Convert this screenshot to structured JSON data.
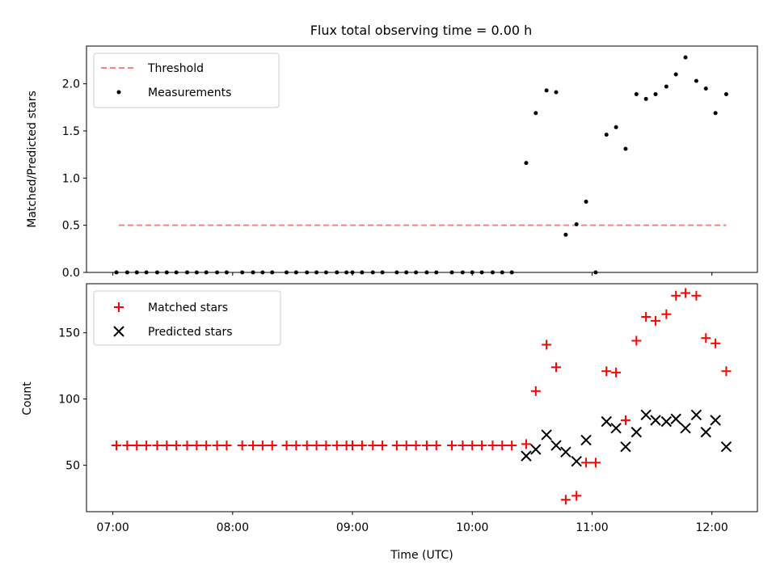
{
  "title": "Flux total observing time = 0.00 h",
  "colors": {
    "threshold": "#ff7f7f",
    "measurement": "#000000",
    "matched": "#ff0000",
    "predicted": "#000000"
  },
  "chart_data": [
    {
      "type": "scatter",
      "ylabel": "Matched/Predicted stars",
      "ylim": [
        0,
        2.4
      ],
      "yticks": [
        "0.0",
        "0.5",
        "1.0",
        "1.5",
        "2.0"
      ],
      "xlim_hours": [
        6.78,
        12.38
      ],
      "legend": {
        "placement": "top-left",
        "entries": [
          "Threshold",
          "Measurements"
        ]
      },
      "threshold": {
        "name": "Threshold",
        "y": 0.5,
        "x": [
          7.05,
          12.12
        ]
      },
      "series": [
        {
          "name": "Measurements",
          "x": [
            7.03,
            7.12,
            7.2,
            7.28,
            7.37,
            7.45,
            7.53,
            7.62,
            7.7,
            7.78,
            7.87,
            7.95,
            8.08,
            8.17,
            8.25,
            8.33,
            8.45,
            8.53,
            8.62,
            8.7,
            8.78,
            8.87,
            8.95,
            9.0,
            9.08,
            9.17,
            9.25,
            9.37,
            9.45,
            9.53,
            9.62,
            9.7,
            9.83,
            9.92,
            10.0,
            10.08,
            10.17,
            10.25,
            10.33,
            10.45,
            10.53,
            10.62,
            10.7,
            10.78,
            10.87,
            10.95,
            11.03,
            11.12,
            11.2,
            11.28,
            11.37,
            11.45,
            11.53,
            11.62,
            11.7,
            11.78,
            11.87,
            11.95,
            12.03,
            12.12
          ],
          "y": [
            0,
            0,
            0,
            0,
            0,
            0,
            0,
            0,
            0,
            0,
            0,
            0,
            0,
            0,
            0,
            0,
            0,
            0,
            0,
            0,
            0,
            0,
            0,
            0,
            0,
            0,
            0,
            0,
            0,
            0,
            0,
            0,
            0,
            0,
            0,
            0,
            0,
            0,
            0,
            1.16,
            1.69,
            1.93,
            1.91,
            0.4,
            0.51,
            0.75,
            0,
            1.46,
            1.54,
            1.31,
            1.89,
            1.84,
            1.89,
            1.97,
            2.1,
            2.28,
            2.03,
            1.95,
            1.69,
            1.89
          ]
        }
      ]
    },
    {
      "type": "scatter",
      "xlabel": "Time (UTC)",
      "ylabel": "Count",
      "ylim": [
        15,
        187
      ],
      "yticks": [
        "50",
        "100",
        "150"
      ],
      "xticks": [
        "07:00",
        "08:00",
        "09:00",
        "10:00",
        "11:00",
        "12:00"
      ],
      "xlim_hours": [
        6.78,
        12.38
      ],
      "legend": {
        "placement": "top-left",
        "entries": [
          "Matched stars",
          "Predicted stars"
        ]
      },
      "series": [
        {
          "name": "Matched stars",
          "x": [
            7.03,
            7.12,
            7.2,
            7.28,
            7.37,
            7.45,
            7.53,
            7.62,
            7.7,
            7.78,
            7.87,
            7.95,
            8.08,
            8.17,
            8.25,
            8.33,
            8.45,
            8.53,
            8.62,
            8.7,
            8.78,
            8.87,
            8.95,
            9.0,
            9.08,
            9.17,
            9.25,
            9.37,
            9.45,
            9.53,
            9.62,
            9.7,
            9.83,
            9.92,
            10.0,
            10.08,
            10.17,
            10.25,
            10.33,
            10.45,
            10.53,
            10.62,
            10.7,
            10.78,
            10.87,
            10.95,
            11.03,
            11.12,
            11.2,
            11.28,
            11.37,
            11.45,
            11.53,
            11.62,
            11.7,
            11.78,
            11.87,
            11.95,
            12.03,
            12.12
          ],
          "y": [
            65,
            65,
            65,
            65,
            65,
            65,
            65,
            65,
            65,
            65,
            65,
            65,
            65,
            65,
            65,
            65,
            65,
            65,
            65,
            65,
            65,
            65,
            65,
            65,
            65,
            65,
            65,
            65,
            65,
            65,
            65,
            65,
            65,
            65,
            65,
            65,
            65,
            65,
            65,
            66,
            106,
            141,
            124,
            24,
            27,
            52,
            52,
            121,
            120,
            84,
            144,
            162,
            159,
            164,
            178,
            180,
            178,
            146,
            142,
            121
          ]
        },
        {
          "name": "Predicted stars",
          "x": [
            10.45,
            10.53,
            10.62,
            10.7,
            10.78,
            10.87,
            10.95,
            11.12,
            11.2,
            11.28,
            11.37,
            11.45,
            11.53,
            11.62,
            11.7,
            11.78,
            11.87,
            11.95,
            12.03,
            12.12
          ],
          "y": [
            57,
            62,
            73,
            65,
            60,
            53,
            69,
            83,
            78,
            64,
            75,
            88,
            84,
            83,
            85,
            78,
            88,
            75,
            84,
            64
          ]
        }
      ]
    }
  ]
}
